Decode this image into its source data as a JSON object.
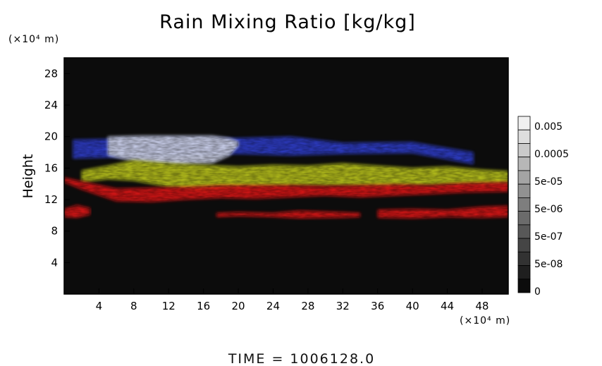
{
  "chart_data": {
    "type": "heatmap",
    "title": "Rain Mixing Ratio [kg/kg]",
    "ylabel": "Height",
    "x_unit": "(×10⁴ m)",
    "y_unit": "(×10⁴ m)",
    "xlim": [
      0,
      51
    ],
    "ylim": [
      0,
      30
    ],
    "x_ticks": [
      4,
      8,
      12,
      16,
      20,
      24,
      28,
      32,
      36,
      40,
      44,
      48
    ],
    "y_ticks": [
      4,
      8,
      12,
      16,
      20,
      24,
      28
    ],
    "colorbar": {
      "labels": [
        "0.005",
        "0.0005",
        "5e-05",
        "5e-06",
        "5e-07",
        "5e-08",
        "0"
      ],
      "steps": 13
    },
    "layers": [
      {
        "color": "#2f3cc8",
        "segments": [
          [
            1,
            17.2,
            19.6
          ],
          [
            10,
            17.5,
            19.8
          ],
          [
            20,
            17.8,
            19.8
          ],
          [
            26,
            17.6,
            20.0
          ],
          [
            32,
            17.8,
            19.2
          ],
          [
            40,
            17.9,
            19.3
          ],
          [
            47,
            16.5,
            18.0
          ]
        ]
      },
      {
        "color": "#cfd4ea",
        "segments": [
          [
            5,
            17.6,
            20.0
          ],
          [
            9,
            16.6,
            20.1
          ],
          [
            13,
            16.4,
            20.1
          ],
          [
            17,
            16.6,
            20.1
          ],
          [
            19,
            17.6,
            19.8
          ],
          [
            20,
            18.8,
            19.4
          ]
        ]
      },
      {
        "color": "#b8c21c",
        "segments": [
          [
            2,
            14.2,
            15.7
          ],
          [
            5,
            14.6,
            16.3
          ],
          [
            8,
            14.4,
            17.0
          ],
          [
            12,
            13.6,
            16.6
          ],
          [
            16,
            13.0,
            16.4
          ],
          [
            20,
            13.5,
            16.2
          ],
          [
            24,
            13.6,
            16.4
          ],
          [
            28,
            13.8,
            16.3
          ],
          [
            32,
            13.8,
            16.6
          ],
          [
            36,
            13.6,
            16.3
          ],
          [
            40,
            13.8,
            16.0
          ],
          [
            44,
            13.9,
            16.2
          ],
          [
            48,
            13.9,
            15.8
          ],
          [
            51,
            14.0,
            15.6
          ]
        ]
      },
      {
        "color": "#d81616",
        "segments": [
          [
            0,
            14.2,
            14.8
          ],
          [
            2,
            13.3,
            14.3
          ],
          [
            6,
            11.8,
            13.4
          ],
          [
            10,
            11.7,
            13.5
          ],
          [
            14,
            12.0,
            13.6
          ],
          [
            18,
            12.2,
            13.8
          ],
          [
            22,
            12.1,
            13.8
          ],
          [
            26,
            12.3,
            13.8
          ],
          [
            30,
            12.5,
            13.7
          ],
          [
            34,
            12.3,
            13.8
          ],
          [
            38,
            12.5,
            13.9
          ],
          [
            42,
            12.7,
            13.8
          ],
          [
            46,
            12.9,
            14.1
          ],
          [
            51,
            13.0,
            14.2
          ]
        ]
      },
      {
        "color": "#d81616",
        "segments": [
          [
            0,
            9.8,
            10.8
          ],
          [
            1.5,
            9.7,
            11.3
          ],
          [
            3,
            10.1,
            10.9
          ]
        ]
      },
      {
        "color": "#d81616",
        "segments": [
          [
            17.5,
            9.8,
            10.3
          ],
          [
            20,
            9.9,
            10.4
          ],
          [
            24,
            9.8,
            10.3
          ],
          [
            27,
            9.6,
            10.6
          ],
          [
            32,
            9.7,
            10.4
          ],
          [
            34,
            9.8,
            10.3
          ]
        ]
      },
      {
        "color": "#d81616",
        "segments": [
          [
            36,
            9.7,
            10.7
          ],
          [
            40,
            9.6,
            10.8
          ],
          [
            44,
            9.8,
            10.7
          ],
          [
            48,
            9.7,
            11.1
          ],
          [
            51,
            9.8,
            11.2
          ]
        ]
      }
    ],
    "time_label": "TIME = 1006128.0"
  }
}
